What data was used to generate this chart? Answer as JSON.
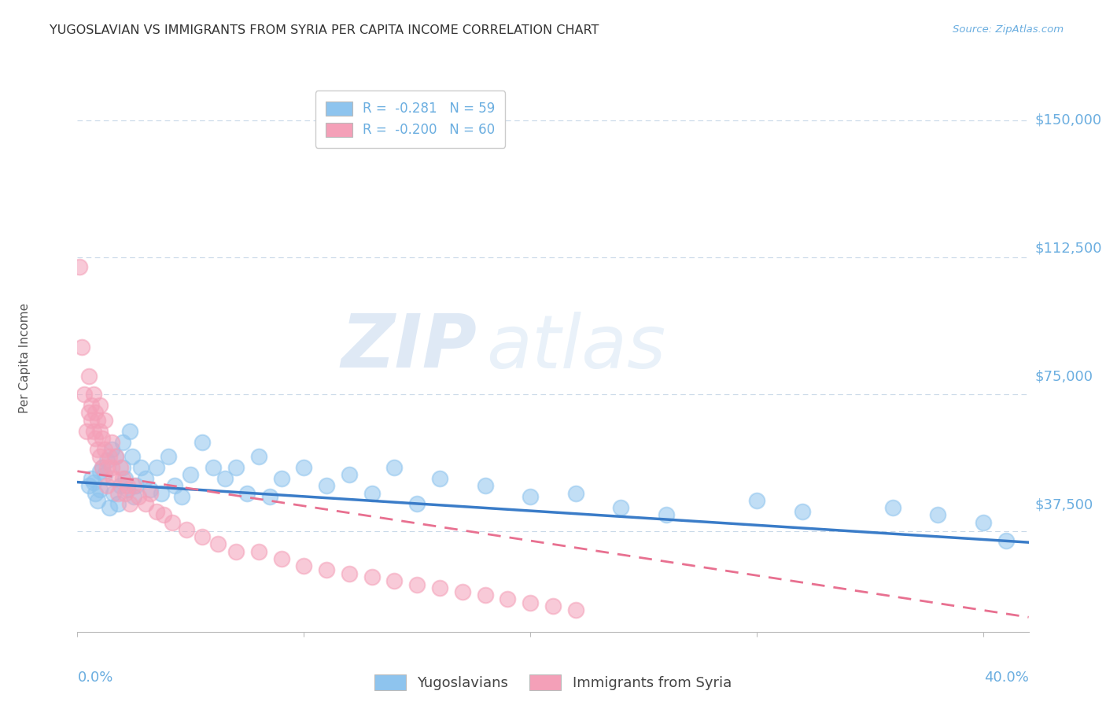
{
  "title": "YUGOSLAVIAN VS IMMIGRANTS FROM SYRIA PER CAPITA INCOME CORRELATION CHART",
  "source": "Source: ZipAtlas.com",
  "ylabel": "Per Capita Income",
  "yticks": [
    0,
    37500,
    75000,
    112500,
    150000
  ],
  "ytick_labels": [
    "",
    "$37,500",
    "$75,000",
    "$112,500",
    "$150,000"
  ],
  "xlim": [
    0.0,
    0.42
  ],
  "ylim": [
    10000,
    160000
  ],
  "watermark_zip": "ZIP",
  "watermark_atlas": "atlas",
  "legend_entries": [
    {
      "label": "R =  -0.281   N = 59",
      "color": "#8EC4EE"
    },
    {
      "label": "R =  -0.200   N = 60",
      "color": "#F4A0B8"
    }
  ],
  "legend_xlabel": [
    "Yugoslavians",
    "Immigrants from Syria"
  ],
  "yug_color": "#8EC4EE",
  "syria_color": "#F4A0B8",
  "yug_line_color": "#3A7CC8",
  "syria_line_color": "#E87090",
  "title_color": "#333333",
  "axis_color": "#6BAEE0",
  "grid_color": "#C8D8E8",
  "yug_x": [
    0.005,
    0.006,
    0.007,
    0.008,
    0.009,
    0.01,
    0.01,
    0.011,
    0.012,
    0.013,
    0.014,
    0.015,
    0.016,
    0.017,
    0.018,
    0.019,
    0.02,
    0.02,
    0.021,
    0.022,
    0.023,
    0.024,
    0.025,
    0.026,
    0.028,
    0.03,
    0.032,
    0.035,
    0.037,
    0.04,
    0.043,
    0.046,
    0.05,
    0.055,
    0.06,
    0.065,
    0.07,
    0.075,
    0.08,
    0.085,
    0.09,
    0.1,
    0.11,
    0.12,
    0.13,
    0.14,
    0.15,
    0.16,
    0.18,
    0.2,
    0.22,
    0.24,
    0.26,
    0.3,
    0.32,
    0.36,
    0.38,
    0.4,
    0.41
  ],
  "yug_y": [
    50000,
    52000,
    51000,
    48000,
    46000,
    54000,
    49000,
    55000,
    53000,
    57000,
    44000,
    60000,
    48000,
    58000,
    45000,
    50000,
    62000,
    55000,
    52000,
    49000,
    65000,
    58000,
    47000,
    50000,
    55000,
    52000,
    49000,
    55000,
    48000,
    58000,
    50000,
    47000,
    53000,
    62000,
    55000,
    52000,
    55000,
    48000,
    58000,
    47000,
    52000,
    55000,
    50000,
    53000,
    48000,
    55000,
    45000,
    52000,
    50000,
    47000,
    48000,
    44000,
    42000,
    46000,
    43000,
    44000,
    42000,
    40000,
    35000
  ],
  "syria_x": [
    0.001,
    0.002,
    0.003,
    0.004,
    0.005,
    0.005,
    0.006,
    0.006,
    0.007,
    0.007,
    0.008,
    0.008,
    0.009,
    0.009,
    0.01,
    0.01,
    0.01,
    0.011,
    0.011,
    0.012,
    0.012,
    0.013,
    0.013,
    0.014,
    0.015,
    0.015,
    0.016,
    0.017,
    0.018,
    0.019,
    0.02,
    0.021,
    0.022,
    0.023,
    0.025,
    0.027,
    0.03,
    0.032,
    0.035,
    0.038,
    0.042,
    0.048,
    0.055,
    0.062,
    0.07,
    0.08,
    0.09,
    0.1,
    0.11,
    0.12,
    0.13,
    0.14,
    0.15,
    0.16,
    0.17,
    0.18,
    0.19,
    0.2,
    0.21,
    0.22
  ],
  "syria_y": [
    110000,
    88000,
    75000,
    65000,
    80000,
    70000,
    72000,
    68000,
    75000,
    65000,
    70000,
    63000,
    68000,
    60000,
    72000,
    65000,
    58000,
    63000,
    55000,
    68000,
    60000,
    55000,
    50000,
    58000,
    62000,
    55000,
    52000,
    58000,
    48000,
    55000,
    52000,
    48000,
    50000,
    45000,
    50000,
    47000,
    45000,
    48000,
    43000,
    42000,
    40000,
    38000,
    36000,
    34000,
    32000,
    32000,
    30000,
    28000,
    27000,
    26000,
    25000,
    24000,
    23000,
    22000,
    21000,
    20000,
    19000,
    18000,
    17000,
    16000
  ],
  "yug_trend": [
    0.0,
    0.42,
    51000,
    34500
  ],
  "syria_trend": [
    0.0,
    0.42,
    54000,
    14000
  ]
}
